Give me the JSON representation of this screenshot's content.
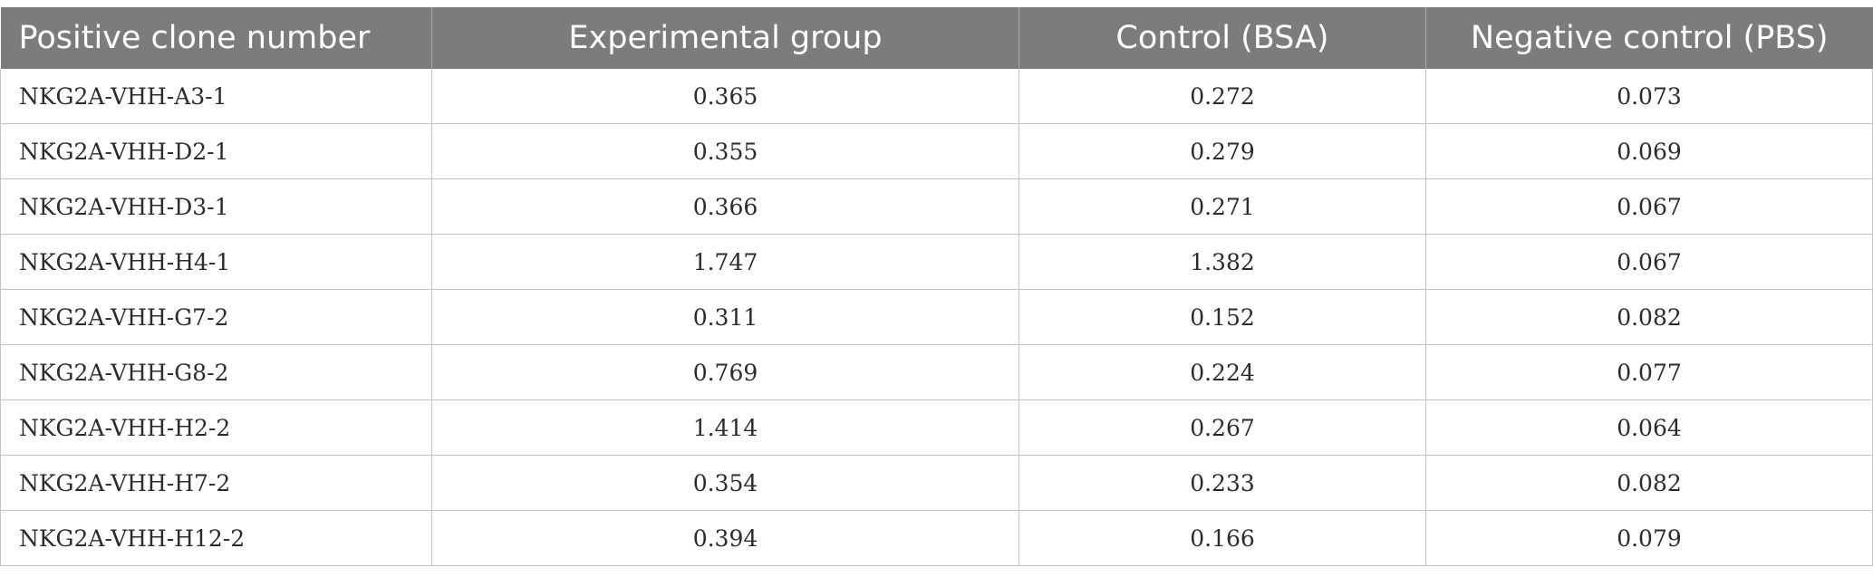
{
  "table": {
    "headers": [
      "Positive clone number",
      "Experimental group",
      "Control (BSA)",
      "Negative control (PBS)"
    ],
    "rows": [
      [
        "NKG2A-VHH-A3-1",
        "0.365",
        "0.272",
        "0.073"
      ],
      [
        "NKG2A-VHH-D2-1",
        "0.355",
        "0.279",
        "0.069"
      ],
      [
        "NKG2A-VHH-D3-1",
        "0.366",
        "0.271",
        "0.067"
      ],
      [
        "NKG2A-VHH-H4-1",
        "1.747",
        "1.382",
        "0.067"
      ],
      [
        "NKG2A-VHH-G7-2",
        "0.311",
        "0.152",
        "0.082"
      ],
      [
        "NKG2A-VHH-G8-2",
        "0.769",
        "0.224",
        "0.077"
      ],
      [
        "NKG2A-VHH-H2-2",
        "1.414",
        "0.267",
        "0.064"
      ],
      [
        "NKG2A-VHH-H7-2",
        "0.354",
        "0.233",
        "0.082"
      ],
      [
        "NKG2A-VHH-H12-2",
        "0.394",
        "0.166",
        "0.079"
      ]
    ]
  },
  "colors": {
    "header_bg": "#7b7c7b",
    "header_text": "#ffffff",
    "cell_text": "#2b2b2b",
    "grid": "#c4c4c4"
  }
}
